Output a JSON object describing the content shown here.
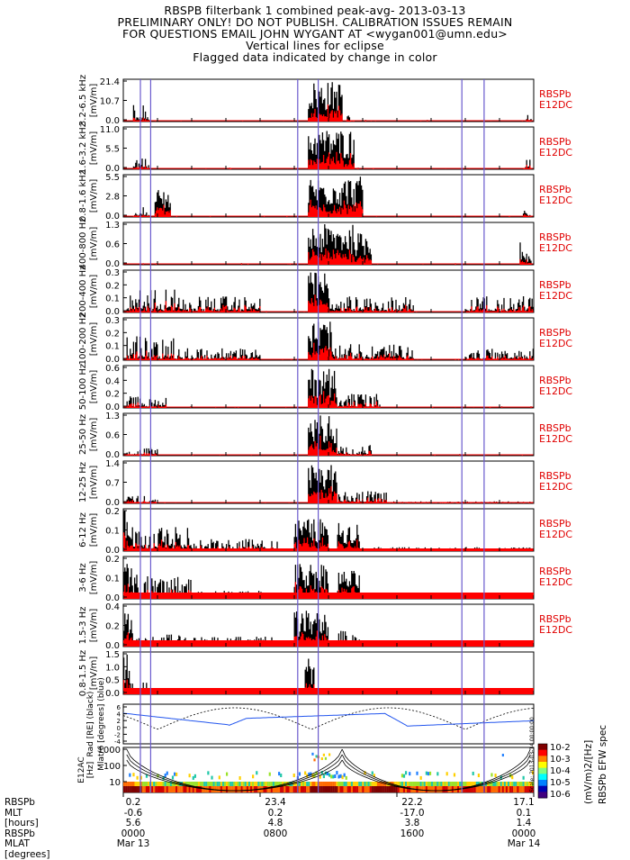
{
  "header": {
    "line1": "RBSPB filterbank 1 combined peak-avg- 2013-03-13",
    "line2": "PRELIMINARY ONLY! DO NOT PUBLISH. CALIBRATION ISSUES REMAIN",
    "line3": "FOR QUESTIONS EMAIL JOHN WYGANT AT <wygan001@umn.edu>",
    "line4": "Vertical lines for eclipse",
    "line5": "Flagged data indicated by change in color"
  },
  "colors": {
    "peak": "#000000",
    "avg": "#ff0000",
    "eclipse": "#6a5acd",
    "trace": "#2255ee"
  },
  "chart_data": {
    "type": "area",
    "eclipse_times_hours": [
      1.0,
      1.6,
      10.2,
      11.4,
      19.8,
      21.1
    ],
    "x_range_hours": [
      0,
      24
    ],
    "panels": [
      {
        "band": "3.2-6.5",
        "freq_unit": "kHz",
        "ylabel": "[mV/m]",
        "ticks": [
          "21.4",
          "10.7",
          "0.0"
        ],
        "ymax": 21.4,
        "label1": "RBSPb",
        "label2": "E12DC"
      },
      {
        "band": "1.6-3.2",
        "freq_unit": "kHz",
        "ylabel": "[mV/m]",
        "ticks": [
          "11.0",
          "5.5",
          "0.0"
        ],
        "ymax": 11.0,
        "label1": "RBSPb",
        "label2": "E12DC"
      },
      {
        "band": "0.8-1.6",
        "freq_unit": "kHz",
        "ylabel": "[mV/m]",
        "ticks": [
          "5.5",
          "2.8",
          "0.0"
        ],
        "ymax": 5.5,
        "label1": "RBSPb",
        "label2": "E12DC"
      },
      {
        "band": "400-800",
        "freq_unit": "Hz",
        "ylabel": "[mV/m]",
        "ticks": [
          "1.3",
          "0.6",
          "0.0"
        ],
        "ymax": 1.3,
        "label1": "RBSPb",
        "label2": "E12DC"
      },
      {
        "band": "200-400",
        "freq_unit": "Hz",
        "ylabel": "[mV/m]",
        "ticks": [
          "0.3",
          "0.2",
          "0.1",
          "0.0"
        ],
        "ymax": 0.3,
        "label1": "RBSPb",
        "label2": "E12DC"
      },
      {
        "band": "100-200",
        "freq_unit": "Hz",
        "ylabel": "[mV/m]",
        "ticks": [
          "0.3",
          "0.2",
          "0.1",
          "0.0"
        ],
        "ymax": 0.3,
        "label1": "RBSPb",
        "label2": "E12DC"
      },
      {
        "band": "50-100",
        "freq_unit": "Hz",
        "ylabel": "[mV/m]",
        "ticks": [
          "0.6",
          "0.4",
          "0.2",
          "0.0"
        ],
        "ymax": 0.6,
        "label1": "RBSPb",
        "label2": "E12DC"
      },
      {
        "band": "25-50",
        "freq_unit": "Hz",
        "ylabel": "[mV/m]",
        "ticks": [
          "1.3",
          "0.6",
          "0.0"
        ],
        "ymax": 1.3,
        "label1": "RBSPb",
        "label2": "E12DC"
      },
      {
        "band": "12-25",
        "freq_unit": "Hz",
        "ylabel": "[mV/m]",
        "ticks": [
          "1.4",
          "0.7",
          "0.0"
        ],
        "ymax": 1.4,
        "label1": "RBSPb",
        "label2": "E12DC"
      },
      {
        "band": "6-12",
        "freq_unit": "Hz",
        "ylabel": "[mV/m]",
        "ticks": [
          "0.2",
          "0.1",
          "0.0"
        ],
        "ymax": 0.2,
        "label1": "RBSPb",
        "label2": "E12DC"
      },
      {
        "band": "3-6",
        "freq_unit": "Hz",
        "ylabel": "[mV/m]",
        "ticks": [
          "0.2",
          "0.1",
          "0.0"
        ],
        "ymax": 0.2,
        "label1": "RBSPb",
        "label2": "E12DC"
      },
      {
        "band": "1.5-3",
        "freq_unit": "Hz",
        "ylabel": "[mV/m]",
        "ticks": [
          "0.4",
          "0.2",
          "0.0"
        ],
        "ymax": 0.4,
        "label1": "RBSPb",
        "label2": "E12DC"
      },
      {
        "band": "0.8-1.5",
        "freq_unit": "Hz",
        "ylabel": "[mV/m]",
        "ticks": [
          "1.5",
          "1.0",
          "0.5",
          "0.0"
        ],
        "ymax": 1.5,
        "label1": "",
        "label2": ""
      }
    ],
    "rad_panel": {
      "ylabel_lines": [
        "Rad [RE] (black)",
        "Mlat/6 [degrees] (blue)"
      ],
      "ticks": [
        "6",
        "4",
        "2",
        "0",
        "-2",
        "-4"
      ]
    },
    "spec_panel": {
      "ylabel_lines": [
        "E12AC",
        "[Hz]"
      ],
      "ticks": [
        "1000",
        "100",
        "10"
      ],
      "colorbar_ticks": [
        "10-2",
        "10-3",
        "10-4",
        "10-5",
        "10-6"
      ],
      "colorbar_label": "(mV/m)2/[Hz]",
      "side_label": "RBSPb EFW spec",
      "stamp": "Scale: 2013-03-14 00:00:00"
    },
    "ephemeris": {
      "row_labels": [
        "RBSPb",
        "MLT",
        "[hours]",
        "RBSPb",
        "MLAT",
        "[degrees]"
      ],
      "columns": [
        {
          "mlt": "0.2",
          "mlat": "-0.6",
          "l": "5.6",
          "time": "0000",
          "date": "Mar 13"
        },
        {
          "mlt": "23.4",
          "mlat": "0.2",
          "l": "4.8",
          "time": "0800",
          "date": ""
        },
        {
          "mlt": "22.2",
          "mlat": "-17.0",
          "l": "3.8",
          "time": "1600",
          "date": ""
        },
        {
          "mlt": "17.1",
          "mlat": "0.1",
          "l": "1.4",
          "time": "0000",
          "date": "Mar 14"
        }
      ]
    }
  }
}
